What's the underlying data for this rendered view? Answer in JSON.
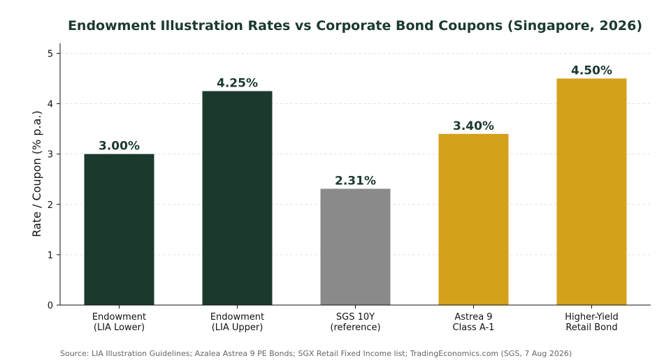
{
  "chart_data": {
    "type": "bar",
    "title": "Endowment Illustration Rates vs Corporate Bond Coupons (Singapore, 2026)",
    "xlabel": "",
    "ylabel": "Rate / Coupon (% p.a.)",
    "ylim": [
      0,
      5.2
    ],
    "yticks": [
      "0",
      "1",
      "2",
      "3",
      "4",
      "5"
    ],
    "grid": true,
    "categories": [
      [
        "Endowment",
        "(LIA Lower)"
      ],
      [
        "Endowment",
        "(LIA Upper)"
      ],
      [
        "SGS 10Y",
        "(reference)"
      ],
      [
        "Astrea 9",
        "Class A-1"
      ],
      [
        "Higher-Yield",
        "Retail Bond"
      ]
    ],
    "values": [
      3.0,
      4.25,
      2.31,
      3.4,
      4.5
    ],
    "data_labels": [
      "3.00%",
      "4.25%",
      "2.31%",
      "3.40%",
      "4.50%"
    ],
    "colors": [
      "#1b3a2d",
      "#1b3a2d",
      "#8a8a8a",
      "#d4a11c",
      "#d4a11c"
    ],
    "source": "Source: LIA Illustration Guidelines; Azalea Astrea 9 PE Bonds; SGX Retail Fixed Income list; TradingEconomics.com (SGS, 7 Aug 2026)"
  }
}
